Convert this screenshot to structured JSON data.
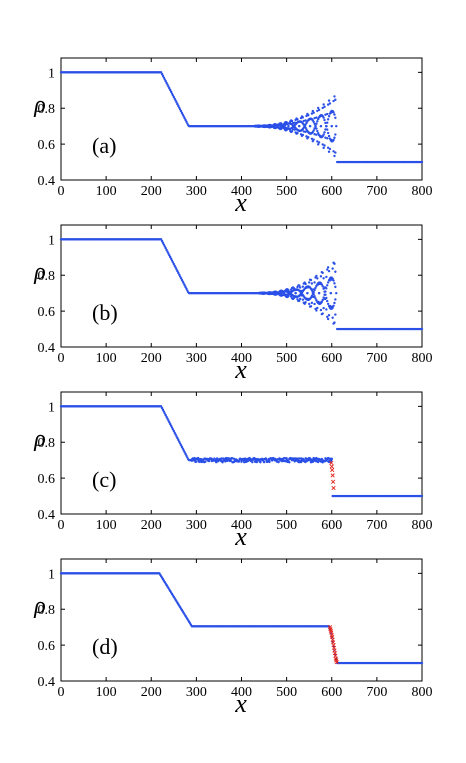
{
  "colors": {
    "blue": "#2b50e8",
    "red": "#e2231a",
    "axis": "#000000"
  },
  "chart_data": [
    {
      "type": "scatter",
      "panel_label": "(a)",
      "xlabel": "x",
      "ylabel": "ρ",
      "xlim": [
        0,
        800
      ],
      "ylim": [
        0.4,
        1.08
      ],
      "xticks": [
        0,
        100,
        200,
        300,
        400,
        500,
        600,
        700,
        800
      ],
      "yticks": [
        0.4,
        0.6,
        0.8,
        1
      ],
      "ytick_labels": [
        "0.4",
        "0.6",
        "0.8",
        "1"
      ],
      "grid": false,
      "series": [
        {
          "color": "blue",
          "marker": "dot",
          "profile": [
            [
              0,
              1.0
            ],
            [
              222,
              1.0
            ],
            [
              283,
              0.7
            ],
            [
              610,
              0.7
            ],
            [
              610,
              0.5
            ],
            [
              800,
              0.5
            ]
          ],
          "oscillation": {
            "x_start": 430,
            "x_end": 608,
            "amp_start": 0.003,
            "amp_end": 0.17,
            "period": 24,
            "mode": "period_doubling"
          }
        }
      ]
    },
    {
      "type": "scatter",
      "panel_label": "(b)",
      "xlabel": "x",
      "ylabel": "ρ",
      "xlim": [
        0,
        800
      ],
      "ylim": [
        0.4,
        1.08
      ],
      "xticks": [
        0,
        100,
        200,
        300,
        400,
        500,
        600,
        700,
        800
      ],
      "yticks": [
        0.4,
        0.6,
        0.8,
        1
      ],
      "ytick_labels": [
        "0.4",
        "0.6",
        "0.8",
        "1"
      ],
      "grid": false,
      "series": [
        {
          "color": "blue",
          "marker": "dot",
          "profile": [
            [
              0,
              1.0
            ],
            [
              222,
              1.0
            ],
            [
              283,
              0.7
            ],
            [
              610,
              0.7
            ],
            [
              610,
              0.5
            ],
            [
              800,
              0.5
            ]
          ],
          "oscillation": {
            "x_start": 440,
            "x_end": 608,
            "amp_start": 0.003,
            "amp_end": 0.18,
            "period": 26,
            "mode": "period_doubling"
          }
        }
      ]
    },
    {
      "type": "scatter",
      "panel_label": "(c)",
      "xlabel": "x",
      "ylabel": "ρ",
      "xlim": [
        0,
        800
      ],
      "ylim": [
        0.4,
        1.08
      ],
      "xticks": [
        0,
        100,
        200,
        300,
        400,
        500,
        600,
        700,
        800
      ],
      "yticks": [
        0.4,
        0.6,
        0.8,
        1
      ],
      "ytick_labels": [
        "0.4",
        "0.6",
        "0.8",
        "1"
      ],
      "grid": false,
      "series": [
        {
          "color": "blue",
          "marker": "dot",
          "profile": [
            [
              0,
              1.0
            ],
            [
              222,
              1.0
            ],
            [
              283,
              0.7
            ],
            [
              600,
              0.7
            ],
            [
              600,
              0.5
            ],
            [
              800,
              0.5
            ]
          ],
          "noise": {
            "x_start": 290,
            "x_end": 600,
            "amp": 0.012
          }
        },
        {
          "color": "red",
          "marker": "x",
          "points": [
            [
              599,
              0.685
            ],
            [
              600,
              0.665
            ],
            [
              601,
              0.645
            ],
            [
              602,
              0.615
            ],
            [
              603,
              0.58
            ],
            [
              604,
              0.545
            ]
          ]
        }
      ]
    },
    {
      "type": "scatter",
      "panel_label": "(d)",
      "xlabel": "x",
      "ylabel": "ρ",
      "xlim": [
        0,
        800
      ],
      "ylim": [
        0.4,
        1.08
      ],
      "xticks": [
        0,
        100,
        200,
        300,
        400,
        500,
        600,
        700,
        800
      ],
      "yticks": [
        0.4,
        0.6,
        0.8,
        1
      ],
      "ytick_labels": [
        "0.4",
        "0.6",
        "0.8",
        "1"
      ],
      "grid": false,
      "series": [
        {
          "color": "blue",
          "marker": "dot",
          "profile": [
            [
              0,
              1.0
            ],
            [
              218,
              1.0
            ],
            [
              290,
              0.705
            ],
            [
              595,
              0.705
            ],
            [
              595,
              0.7
            ],
            [
              612,
              0.5
            ],
            [
              800,
              0.5
            ]
          ]
        },
        {
          "color": "red",
          "marker": "x",
          "points": [
            [
              596,
              0.7
            ],
            [
              597,
              0.69
            ],
            [
              598,
              0.68
            ],
            [
              599,
              0.67
            ],
            [
              600,
              0.655
            ],
            [
              601,
              0.645
            ],
            [
              602,
              0.63
            ],
            [
              603,
              0.615
            ],
            [
              604,
              0.6
            ],
            [
              605,
              0.585
            ],
            [
              606,
              0.57
            ],
            [
              607,
              0.555
            ],
            [
              608,
              0.54
            ],
            [
              609,
              0.525
            ],
            [
              610,
              0.515
            ],
            [
              611,
              0.505
            ]
          ]
        }
      ]
    }
  ]
}
